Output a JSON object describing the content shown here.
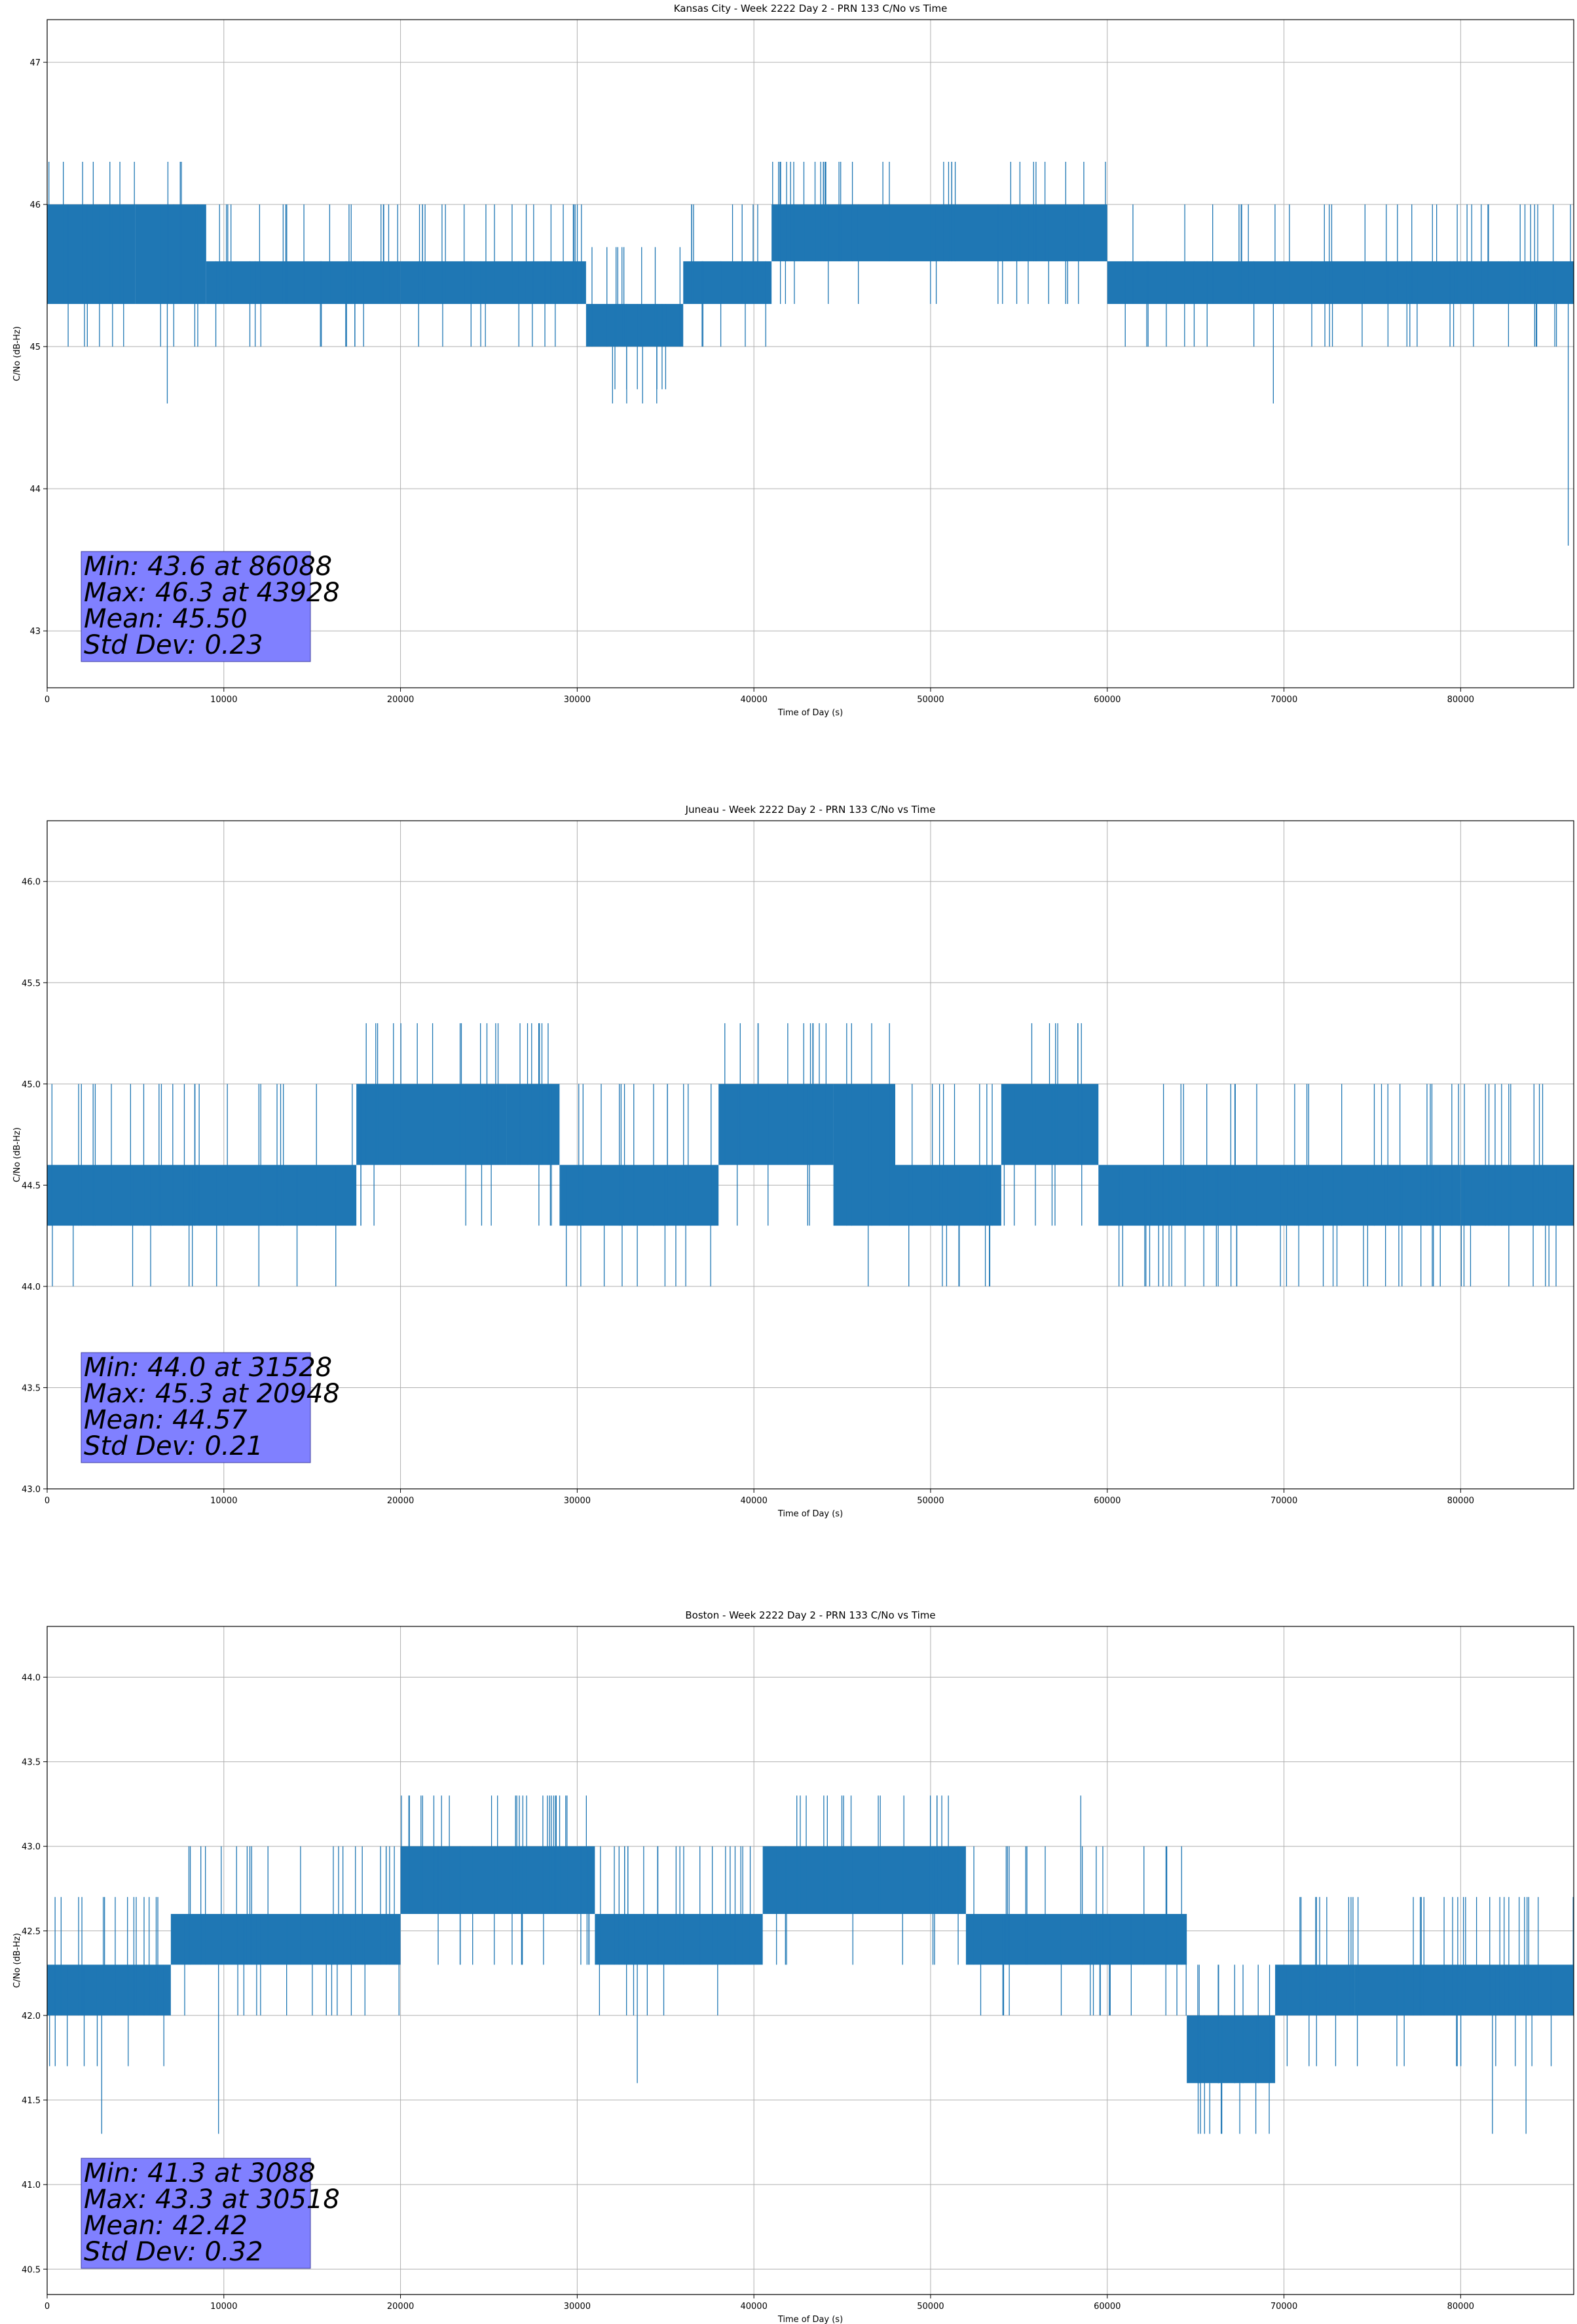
{
  "chart_data": [
    {
      "type": "line",
      "title": "Kansas City - Week 2222 Day 2 - PRN 133 C/No vs Time",
      "xlabel": "Time of Day (s)",
      "ylabel": "C/No (dB-Hz)",
      "xlim": [
        0,
        86400
      ],
      "ylim": [
        42.6,
        47.3
      ],
      "xticks": [
        0,
        10000,
        20000,
        30000,
        40000,
        50000,
        60000,
        70000,
        80000
      ],
      "xtick_labels": [
        "0",
        "10000",
        "20000",
        "30000",
        "40000",
        "50000",
        "60000",
        "70000",
        "80000"
      ],
      "yticks": [
        43,
        44,
        45,
        46,
        47
      ],
      "ytick_labels": [
        "43",
        "44",
        "45",
        "46",
        "47"
      ],
      "grid": true,
      "series_color": "#1f77b4",
      "series": [
        {
          "name": "C/No",
          "segments": [
            {
              "x0": 0,
              "x1": 5000,
              "low": 45.3,
              "high": 46.0
            },
            {
              "x0": 5000,
              "x1": 9000,
              "low": 45.3,
              "high": 46.0
            },
            {
              "x0": 9000,
              "x1": 20000,
              "low": 45.3,
              "high": 45.6
            },
            {
              "x0": 20000,
              "x1": 30500,
              "low": 45.3,
              "high": 45.6
            },
            {
              "x0": 30500,
              "x1": 36000,
              "low": 45.0,
              "high": 45.3
            },
            {
              "x0": 36000,
              "x1": 41000,
              "low": 45.3,
              "high": 45.6
            },
            {
              "x0": 41000,
              "x1": 60000,
              "low": 45.6,
              "high": 46.0
            },
            {
              "x0": 60000,
              "x1": 86400,
              "low": 45.3,
              "high": 45.6
            }
          ],
          "spikes": [
            {
              "x": 6800,
              "value": 44.6
            },
            {
              "x": 32000,
              "value": 44.6
            },
            {
              "x": 32800,
              "value": 44.6
            },
            {
              "x": 33700,
              "value": 44.6
            },
            {
              "x": 34500,
              "value": 44.6
            },
            {
              "x": 41500,
              "value": 45.3
            },
            {
              "x": 43928,
              "value": 46.3
            },
            {
              "x": 47300,
              "value": 46.3
            },
            {
              "x": 69400,
              "value": 44.6
            },
            {
              "x": 86088,
              "value": 43.6
            }
          ]
        }
      ],
      "annotation": {
        "lines": [
          "Min: 43.6 at 86088",
          "Max: 46.3 at 43928",
          "Mean: 45.50",
          "Std Dev: 0.23"
        ],
        "facecolor": "#8080ff"
      }
    },
    {
      "type": "line",
      "title": "Juneau - Week 2222 Day 2 - PRN 133 C/No vs Time",
      "xlabel": "Time of Day (s)",
      "ylabel": "C/No (dB-Hz)",
      "xlim": [
        0,
        86400
      ],
      "ylim": [
        43.0,
        46.3
      ],
      "xticks": [
        0,
        10000,
        20000,
        30000,
        40000,
        50000,
        60000,
        70000,
        80000
      ],
      "xtick_labels": [
        "0",
        "10000",
        "20000",
        "30000",
        "40000",
        "50000",
        "60000",
        "70000",
        "80000"
      ],
      "yticks": [
        43.0,
        43.5,
        44.0,
        44.5,
        45.0,
        45.5,
        46.0
      ],
      "ytick_labels": [
        "43.0",
        "43.5",
        "44.0",
        "44.5",
        "45.0",
        "45.5",
        "46.0"
      ],
      "grid": true,
      "series_color": "#1f77b4",
      "series": [
        {
          "name": "C/No",
          "segments": [
            {
              "x0": 0,
              "x1": 17500,
              "low": 44.3,
              "high": 44.6
            },
            {
              "x0": 17500,
              "x1": 26000,
              "low": 44.6,
              "high": 45.0
            },
            {
              "x0": 26000,
              "x1": 29000,
              "low": 44.6,
              "high": 45.0
            },
            {
              "x0": 29000,
              "x1": 38000,
              "low": 44.3,
              "high": 44.6
            },
            {
              "x0": 38000,
              "x1": 44500,
              "low": 44.6,
              "high": 45.0
            },
            {
              "x0": 44500,
              "x1": 48000,
              "low": 44.3,
              "high": 45.0
            },
            {
              "x0": 48000,
              "x1": 54000,
              "low": 44.3,
              "high": 44.6
            },
            {
              "x0": 54000,
              "x1": 59500,
              "low": 44.6,
              "high": 45.0
            },
            {
              "x0": 59500,
              "x1": 80000,
              "low": 44.3,
              "high": 44.6
            },
            {
              "x0": 80000,
              "x1": 86400,
              "low": 44.3,
              "high": 44.6
            }
          ],
          "spikes": [
            {
              "x": 18500,
              "value": 44.3
            },
            {
              "x": 20948,
              "value": 45.3
            },
            {
              "x": 31528,
              "value": 44.0
            },
            {
              "x": 33400,
              "value": 44.0
            },
            {
              "x": 43700,
              "value": 45.3
            },
            {
              "x": 51600,
              "value": 44.0
            },
            {
              "x": 53100,
              "value": 44.0
            },
            {
              "x": 67000,
              "value": 44.0
            },
            {
              "x": 73000,
              "value": 44.0
            },
            {
              "x": 74500,
              "value": 44.0
            },
            {
              "x": 76500,
              "value": 44.0
            },
            {
              "x": 84800,
              "value": 44.0
            }
          ]
        }
      ],
      "annotation": {
        "lines": [
          "Min: 44.0 at 31528",
          "Max: 45.3 at 20948",
          "Mean: 44.57",
          "Std Dev: 0.21"
        ],
        "facecolor": "#8080ff"
      }
    },
    {
      "type": "line",
      "title": "Boston - Week 2222 Day 2 - PRN 133 C/No vs Time",
      "xlabel": "Time of Day (s)",
      "ylabel": "C/No (dB-Hz)",
      "xlim": [
        0,
        86400
      ],
      "ylim": [
        40.35,
        44.3
      ],
      "xticks": [
        0,
        10000,
        20000,
        30000,
        40000,
        50000,
        60000,
        70000,
        80000
      ],
      "xtick_labels": [
        "0",
        "10000",
        "20000",
        "30000",
        "40000",
        "50000",
        "60000",
        "70000",
        "80000"
      ],
      "yticks": [
        40.5,
        41.0,
        41.5,
        42.0,
        42.5,
        43.0,
        43.5,
        44.0
      ],
      "ytick_labels": [
        "40.5",
        "41.0",
        "41.5",
        "42.0",
        "42.5",
        "43.0",
        "43.5",
        "44.0"
      ],
      "grid": true,
      "series_color": "#1f77b4",
      "series": [
        {
          "name": "C/No",
          "segments": [
            {
              "x0": 0,
              "x1": 7000,
              "low": 42.0,
              "high": 42.3
            },
            {
              "x0": 7000,
              "x1": 20000,
              "low": 42.3,
              "high": 42.6
            },
            {
              "x0": 20000,
              "x1": 31000,
              "low": 42.6,
              "high": 43.0
            },
            {
              "x0": 31000,
              "x1": 40500,
              "low": 42.3,
              "high": 42.6
            },
            {
              "x0": 40500,
              "x1": 52000,
              "low": 42.6,
              "high": 43.0
            },
            {
              "x0": 52000,
              "x1": 64500,
              "low": 42.3,
              "high": 42.6
            },
            {
              "x0": 64500,
              "x1": 69500,
              "low": 41.6,
              "high": 42.0
            },
            {
              "x0": 69500,
              "x1": 74000,
              "low": 42.0,
              "high": 42.3
            },
            {
              "x0": 74000,
              "x1": 86400,
              "low": 42.0,
              "high": 42.3
            }
          ],
          "spikes": [
            {
              "x": 3088,
              "value": 41.3
            },
            {
              "x": 9700,
              "value": 41.3
            },
            {
              "x": 30518,
              "value": 43.3
            },
            {
              "x": 33400,
              "value": 41.6
            },
            {
              "x": 45500,
              "value": 43.3
            },
            {
              "x": 58500,
              "value": 43.3
            },
            {
              "x": 65800,
              "value": 41.3
            },
            {
              "x": 67500,
              "value": 41.3
            },
            {
              "x": 81800,
              "value": 41.3
            },
            {
              "x": 83700,
              "value": 41.3
            }
          ]
        }
      ],
      "annotation": {
        "lines": [
          "Min: 41.3 at 3088",
          "Max: 43.3 at 30518",
          "Mean: 42.42",
          "Std Dev: 0.32"
        ],
        "facecolor": "#8080ff"
      }
    }
  ]
}
